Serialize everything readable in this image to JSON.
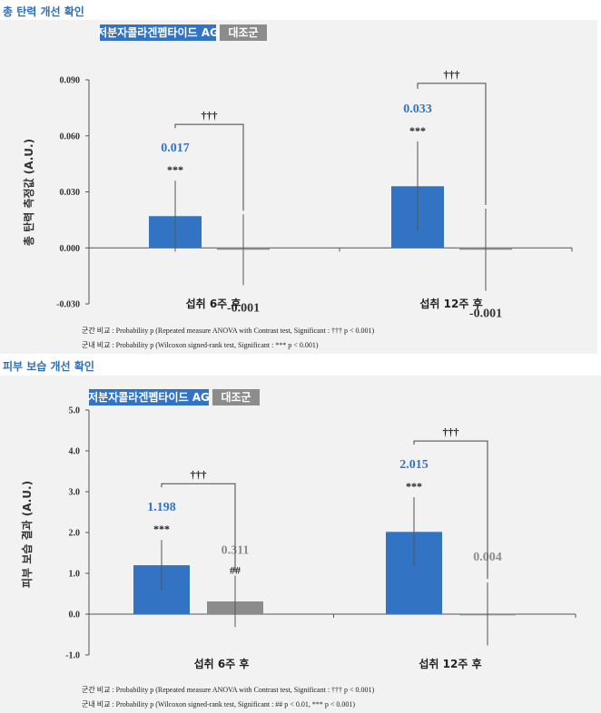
{
  "colors": {
    "treatment": "#3273c3",
    "control": "#8c8c8c",
    "title": "#2f6fb8",
    "panel_bg": "#f2f2f2"
  },
  "sections": [
    {
      "title": "총 탄력 개선 확인",
      "legend": {
        "treatment": "저분자콜라겐펩타이드 AG",
        "control": "대조군"
      },
      "notes": [
        "군간 비교 : Probability p (Repeated measure ANOVA with Contrast test, Significant : ††† p < 0.001)",
        "군내 비교 : Probability p (Wilcoxon signed-rank test, Significant : *** p < 0.001)"
      ]
    },
    {
      "title": "피부 보습 개선 확인",
      "legend": {
        "treatment": "저분자콜라겐펩타이드 AG",
        "control": "대조군"
      },
      "notes": [
        "군간 비교 : Probability p (Repeated measure ANOVA with Contrast test, Significant : ††† p < 0.001)",
        "군내 비교 : Probability p (Wilcoxon signed-rank test, Significant : ## p < 0.01, *** p < 0.001)"
      ]
    }
  ],
  "chart_data": [
    {
      "type": "bar",
      "title": "총 탄력 개선 확인",
      "ylabel": "총 탄력 측정값 (A.U.)",
      "ylim": [
        -0.03,
        0.09
      ],
      "yticks": [
        "-0.030",
        "0.000",
        "0.030",
        "0.060",
        "0.090"
      ],
      "categories": [
        "섭취 6주 후",
        "섭취 12주 후"
      ],
      "series": [
        {
          "name": "저분자콜라겐펩타이드 AG",
          "values": [
            0.017,
            0.033
          ],
          "labels": [
            "0.017",
            "0.033"
          ],
          "err": [
            0.019,
            0.024
          ],
          "sig": [
            "***",
            "***"
          ]
        },
        {
          "name": "대조군",
          "values": [
            -0.001,
            -0.001
          ],
          "labels": [
            "-0.001",
            "-0.001"
          ],
          "err": [
            0.019,
            0.022
          ],
          "sig": [
            "",
            ""
          ]
        }
      ],
      "between_group_sig": [
        "†††",
        "†††"
      ]
    },
    {
      "type": "bar",
      "title": "피부 보습 개선 확인",
      "ylabel": "피부 보습 결과 (A.U.)",
      "ylim": [
        -1.0,
        5.0
      ],
      "yticks": [
        "-1.0",
        "0.0",
        "1.0",
        "2.0",
        "3.0",
        "4.0",
        "5.0"
      ],
      "categories": [
        "섭취 6주 후",
        "섭취 12주 후"
      ],
      "series": [
        {
          "name": "저분자콜라겐펩타이드 AG",
          "values": [
            1.198,
            2.015
          ],
          "labels": [
            "1.198",
            "2.015"
          ],
          "err": [
            0.62,
            0.85
          ],
          "sig": [
            "***",
            "***"
          ]
        },
        {
          "name": "대조군",
          "values": [
            0.311,
            0.004
          ],
          "labels": [
            "0.311",
            "0.004"
          ],
          "err": [
            0.63,
            0.77
          ],
          "sig": [
            "##",
            ""
          ]
        }
      ],
      "between_group_sig": [
        "†††",
        "†††"
      ]
    }
  ]
}
